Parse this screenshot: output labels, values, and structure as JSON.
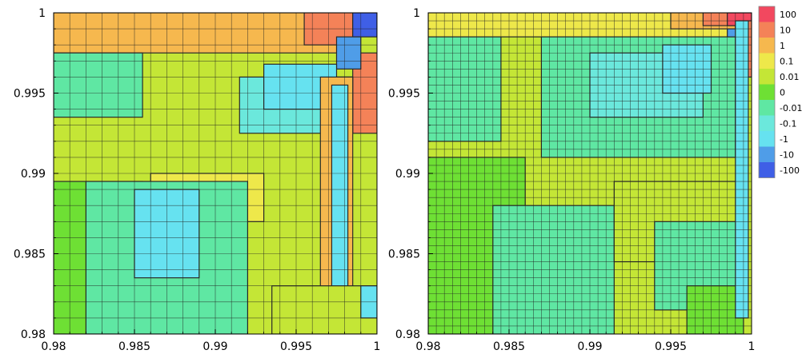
{
  "chart_data": [
    {
      "type": "heatmap",
      "panel": "left",
      "mesh": "coarse",
      "xlim": [
        0.98,
        1
      ],
      "ylim": [
        0.98,
        1
      ],
      "x_ticks": [
        "0.98",
        "0.985",
        "0.99",
        "0.995",
        "1"
      ],
      "y_ticks": [
        "0.98",
        "0.985",
        "0.99",
        "0.995",
        "1"
      ],
      "grid": true,
      "regions": [
        {
          "level": "0.01",
          "x": [
            0.98,
            1.0
          ],
          "y": [
            0.98,
            1.0
          ]
        },
        {
          "level": "1",
          "x": [
            0.98,
            0.998
          ],
          "y": [
            0.9975,
            1.0
          ]
        },
        {
          "level": "10",
          "x": [
            0.9955,
            0.9985
          ],
          "y": [
            0.998,
            1.0
          ]
        },
        {
          "level": "-100",
          "x": [
            0.9985,
            1.0
          ],
          "y": [
            0.9985,
            1.0
          ]
        },
        {
          "level": "10",
          "x": [
            0.9985,
            1.0
          ],
          "y": [
            0.9925,
            0.9975
          ]
        },
        {
          "level": "-10",
          "x": [
            0.9975,
            0.999
          ],
          "y": [
            0.9965,
            0.9985
          ]
        },
        {
          "level": "-0.01",
          "x": [
            0.98,
            0.9855
          ],
          "y": [
            0.9935,
            0.9975
          ]
        },
        {
          "level": "-0.1",
          "x": [
            0.9915,
            0.9985
          ],
          "y": [
            0.9925,
            0.996
          ]
        },
        {
          "level": "-1",
          "x": [
            0.993,
            0.9975
          ],
          "y": [
            0.994,
            0.9968
          ]
        },
        {
          "level": "0.1",
          "x": [
            0.986,
            0.993
          ],
          "y": [
            0.987,
            0.99
          ]
        },
        {
          "level": "1",
          "x": [
            0.9965,
            0.9985
          ],
          "y": [
            0.9815,
            0.996
          ]
        },
        {
          "level": "-1",
          "x": [
            0.9972,
            0.9982
          ],
          "y": [
            0.982,
            0.9955
          ]
        },
        {
          "level": "0",
          "x": [
            0.98,
            0.9855
          ],
          "y": [
            0.98,
            0.9895
          ]
        },
        {
          "level": "-0.01",
          "x": [
            0.982,
            0.992
          ],
          "y": [
            0.98,
            0.9895
          ]
        },
        {
          "level": "-1",
          "x": [
            0.985,
            0.989
          ],
          "y": [
            0.9835,
            0.989
          ]
        },
        {
          "level": "0.01",
          "x": [
            0.9935,
            1.0
          ],
          "y": [
            0.98,
            0.983
          ]
        },
        {
          "level": "-1",
          "x": [
            0.999,
            1.0
          ],
          "y": [
            0.981,
            0.983
          ]
        }
      ]
    },
    {
      "type": "heatmap",
      "panel": "right",
      "mesh": "refined",
      "xlim": [
        0.98,
        1
      ],
      "ylim": [
        0.98,
        1
      ],
      "x_ticks": [
        "0.98",
        "0.985",
        "0.99",
        "0.995",
        "1"
      ],
      "y_ticks": [
        "0.98",
        "0.985",
        "0.99",
        "0.995",
        "1"
      ],
      "grid": true,
      "regions": [
        {
          "level": "0.01",
          "x": [
            0.98,
            1.0
          ],
          "y": [
            0.98,
            1.0
          ]
        },
        {
          "level": "0.1",
          "x": [
            0.98,
            0.999
          ],
          "y": [
            0.9985,
            1.0
          ]
        },
        {
          "level": "1",
          "x": [
            0.995,
            0.999
          ],
          "y": [
            0.999,
            1.0
          ]
        },
        {
          "level": "10",
          "x": [
            0.997,
            0.9995
          ],
          "y": [
            0.9992,
            1.0
          ]
        },
        {
          "level": "100",
          "x": [
            0.9985,
            1.0
          ],
          "y": [
            0.9992,
            1.0
          ]
        },
        {
          "level": "10",
          "x": [
            0.9992,
            1.0
          ],
          "y": [
            0.996,
            0.9995
          ]
        },
        {
          "level": "-10",
          "x": [
            0.9985,
            0.9995
          ],
          "y": [
            0.9975,
            0.999
          ]
        },
        {
          "level": "-0.01",
          "x": [
            0.987,
            0.999
          ],
          "y": [
            0.991,
            0.9985
          ]
        },
        {
          "level": "-0.1",
          "x": [
            0.99,
            0.997
          ],
          "y": [
            0.9935,
            0.9975
          ]
        },
        {
          "level": "-1",
          "x": [
            0.9945,
            0.9975
          ],
          "y": [
            0.995,
            0.998
          ]
        },
        {
          "level": "-0.01",
          "x": [
            0.98,
            0.9845
          ],
          "y": [
            0.992,
            0.9985
          ]
        },
        {
          "level": "0",
          "x": [
            0.98,
            0.986
          ],
          "y": [
            0.98,
            0.991
          ]
        },
        {
          "level": "-0.01",
          "x": [
            0.984,
            0.9915
          ],
          "y": [
            0.98,
            0.988
          ]
        },
        {
          "level": "0.01",
          "x": [
            0.9915,
            0.9995
          ],
          "y": [
            0.9845,
            0.9895
          ]
        },
        {
          "level": "-0.01",
          "x": [
            0.994,
            0.9995
          ],
          "y": [
            0.9815,
            0.987
          ]
        },
        {
          "level": "0",
          "x": [
            0.996,
            0.9995
          ],
          "y": [
            0.98,
            0.983
          ]
        },
        {
          "level": "-1",
          "x": [
            0.999,
            0.9998
          ],
          "y": [
            0.981,
            0.9995
          ]
        }
      ]
    }
  ],
  "colorbar": {
    "labels": [
      "100",
      "10",
      "1",
      "0.1",
      "0.01",
      "0",
      "-0.01",
      "-0.1",
      "-1",
      "-10",
      "-100"
    ],
    "colors": [
      "#f2485f",
      "#f48258",
      "#f6b84e",
      "#eee84a",
      "#c4e636",
      "#6ee034",
      "#5fe7a3",
      "#6be8dc",
      "#66e2f0",
      "#4f9de8",
      "#3f5fe6"
    ]
  }
}
